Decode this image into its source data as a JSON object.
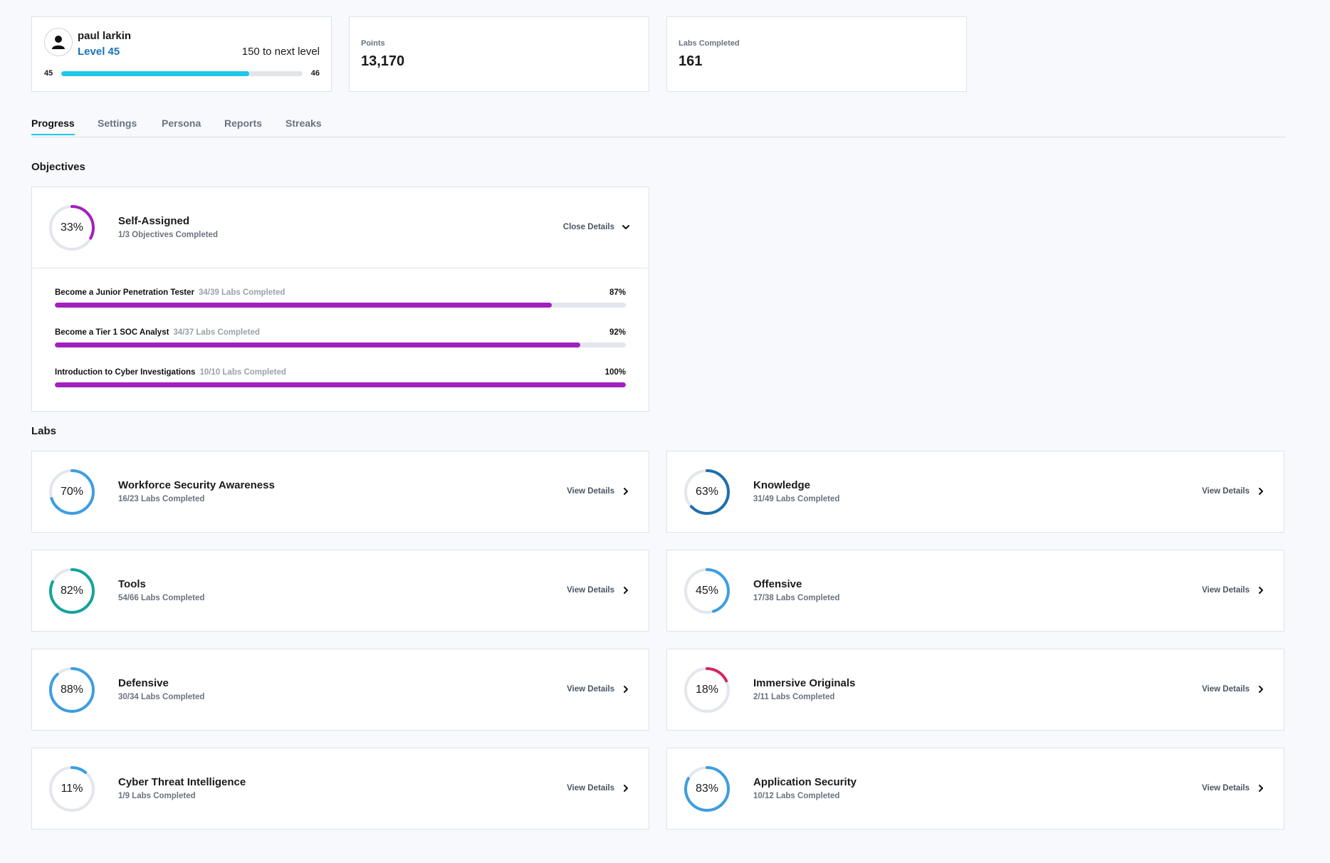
{
  "profile": {
    "name": "paul larkin",
    "level_label": "Level 45",
    "to_next": "150 to next level",
    "current_level": "45",
    "next_level": "46",
    "progress": 0.78
  },
  "stats": [
    {
      "label": "Points",
      "value": "13,170"
    },
    {
      "label": "Labs Completed",
      "value": "161"
    }
  ],
  "tabs": [
    "Progress",
    "Settings",
    "Persona",
    "Reports",
    "Streaks"
  ],
  "objectives": {
    "heading": "Objectives",
    "card": {
      "percent": 33,
      "percent_label": "33%",
      "title": "Self-Assigned",
      "subtitle": "1/3 Objectives Completed",
      "action": "Close Details",
      "color": "#a121be",
      "items": [
        {
          "name": "Become a Junior Penetration Tester",
          "labs": "34/39 Labs Completed",
          "percent": 87,
          "percent_label": "87%"
        },
        {
          "name": "Become a Tier 1 SOC Analyst",
          "labs": "34/37 Labs Completed",
          "percent": 92,
          "percent_label": "92%"
        },
        {
          "name": "Introduction to Cyber Investigations",
          "labs": "10/10 Labs Completed",
          "percent": 100,
          "percent_label": "100%"
        }
      ]
    }
  },
  "labs": {
    "heading": "Labs",
    "action": "View Details",
    "cards": [
      {
        "title": "Workforce Security Awareness",
        "subtitle": "16/23 Labs Completed",
        "percent": 70,
        "percent_label": "70%",
        "color": "#3d9ee0"
      },
      {
        "title": "Knowledge",
        "subtitle": "31/49 Labs Completed",
        "percent": 63,
        "percent_label": "63%",
        "color": "#1e6fae"
      },
      {
        "title": "Tools",
        "subtitle": "54/66 Labs Completed",
        "percent": 82,
        "percent_label": "82%",
        "color": "#14a39a"
      },
      {
        "title": "Offensive",
        "subtitle": "17/38 Labs Completed",
        "percent": 45,
        "percent_label": "45%",
        "color": "#3d9ee0"
      },
      {
        "title": "Defensive",
        "subtitle": "30/34 Labs Completed",
        "percent": 88,
        "percent_label": "88%",
        "color": "#3d9ee0"
      },
      {
        "title": "Immersive Originals",
        "subtitle": "2/11 Labs Completed",
        "percent": 18,
        "percent_label": "18%",
        "color": "#d6265f"
      },
      {
        "title": "Cyber Threat Intelligence",
        "subtitle": "1/9 Labs Completed",
        "percent": 11,
        "percent_label": "11%",
        "color": "#3d9ee0"
      },
      {
        "title": "Application Security",
        "subtitle": "10/12 Labs Completed",
        "percent": 83,
        "percent_label": "83%",
        "color": "#3d9ee0"
      }
    ]
  }
}
